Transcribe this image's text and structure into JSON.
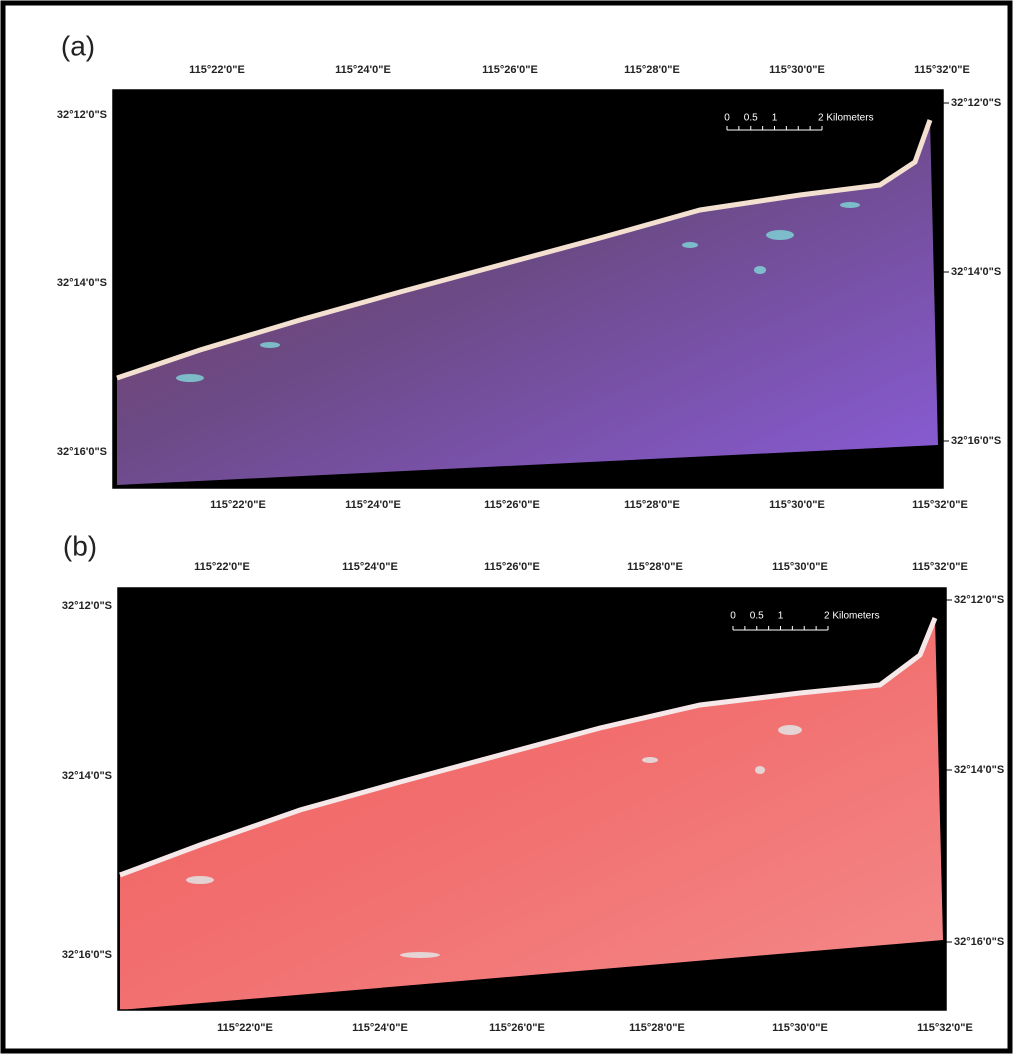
{
  "panels": [
    {
      "label": "(a)",
      "top_longitudes": [
        "115°22'0\"E",
        "115°24'0\"E",
        "115°26'0\"E",
        "115°28'0\"E",
        "115°30'0\"E",
        "115°32'0\"E"
      ],
      "bottom_longitudes": [
        "115°22'0\"E",
        "115°24'0\"E",
        "115°26'0\"E",
        "115°28'0\"E",
        "115°30'0\"E",
        "115°32'0\"E"
      ],
      "left_latitudes": [
        "32°12'0\"S",
        "32°14'0\"S",
        "32°16'0\"S"
      ],
      "right_latitudes": [
        "32°12'0\"S",
        "32°14'0\"S",
        "32°16'0\"S"
      ],
      "scale_bar": {
        "labels": [
          "0",
          "0.5",
          "1"
        ],
        "unit_label": "2 Kilometers"
      }
    },
    {
      "label": "(b)",
      "top_longitudes": [
        "115°22'0\"E",
        "115°24'0\"E",
        "115°26'0\"E",
        "115°28'0\"E",
        "115°30'0\"E",
        "115°32'0\"E"
      ],
      "bottom_longitudes": [
        "115°22'0\"E",
        "115°24'0\"E",
        "115°26'0\"E",
        "115°28'0\"E",
        "115°30'0\"E",
        "115°32'0\"E"
      ],
      "left_latitudes": [
        "32°12'0\"S",
        "32°14'0\"S",
        "32°16'0\"S"
      ],
      "right_latitudes": [
        "32°12'0\"S",
        "32°14'0\"S",
        "32°16'0\"S"
      ],
      "scale_bar": {
        "labels": [
          "0",
          "0.5",
          "1"
        ],
        "unit_label": "2 Kilometers"
      }
    }
  ]
}
